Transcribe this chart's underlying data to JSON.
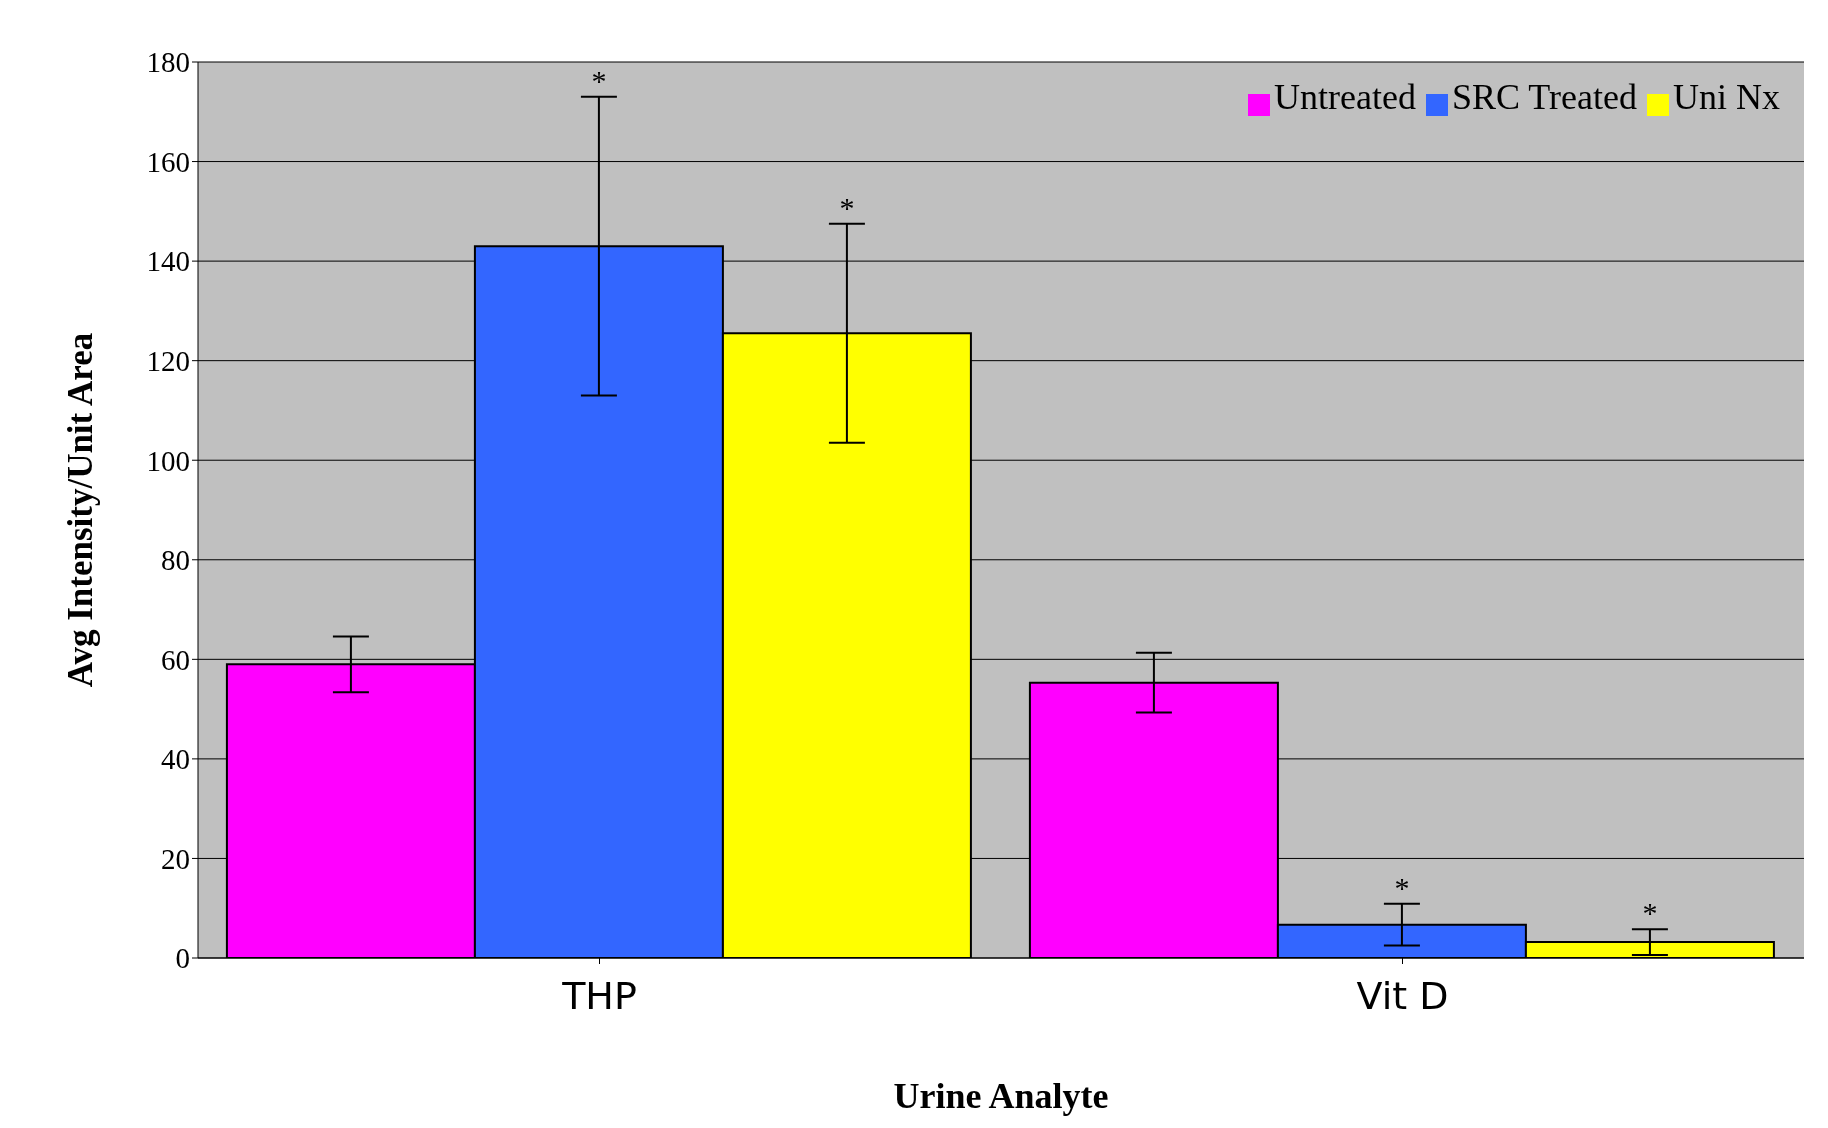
{
  "chart_data": {
    "type": "bar",
    "xlabel": "Urine Analyte",
    "ylabel": "Avg Intensity/Unit Area",
    "categories": [
      "THP",
      "Vit D"
    ],
    "series": [
      {
        "name": "Untreated",
        "color": "#ff00ff",
        "values": [
          59,
          55.3
        ],
        "errors": [
          5.6,
          6
        ]
      },
      {
        "name": "SRC Treated",
        "color": "#3366ff",
        "values": [
          143,
          6.7
        ],
        "errors": [
          30,
          4.2
        ]
      },
      {
        "name": "Uni Nx",
        "color": "#ffff00",
        "values": [
          125.5,
          3.2
        ],
        "errors": [
          22,
          2.6
        ]
      }
    ],
    "ylim": [
      0,
      180
    ],
    "yticks": [
      0,
      20,
      40,
      60,
      80,
      100,
      120,
      140,
      160,
      180
    ],
    "grid": "y",
    "legend": "top right",
    "annotations": [
      "*",
      "*",
      "*",
      "*"
    ]
  }
}
